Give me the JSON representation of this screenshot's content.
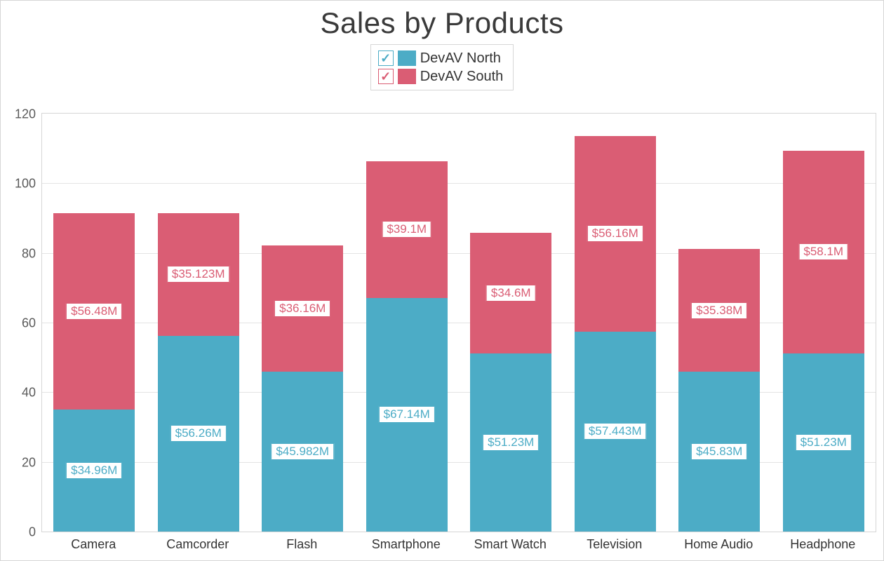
{
  "chart": {
    "type": "stacked-bar",
    "title": "Sales by Products",
    "title_fontsize": 42,
    "title_color": "#3a3a3a",
    "background_color": "#ffffff",
    "frame_border_color": "#d6d6d6",
    "grid_color": "#e4e4e4",
    "axis_label_color": "#5a5a5a",
    "axis_label_fontsize": 18,
    "y": {
      "min": 0,
      "max": 120,
      "tick_step": 20,
      "ticks": [
        0,
        20,
        40,
        60,
        80,
        100,
        120
      ]
    },
    "categories": [
      "Camera",
      "Camcorder",
      "Flash",
      "Smartphone",
      "Smart Watch",
      "Television",
      "Home Audio",
      "Headphone"
    ],
    "bar_width_ratio": 0.78,
    "series": [
      {
        "name": "DevAV North",
        "color": "#4cacc6",
        "check_border": "#4cacc6",
        "check_mark": "✓",
        "values": [
          34.96,
          56.26,
          45.982,
          67.14,
          51.23,
          57.443,
          45.83,
          51.23
        ],
        "labels": [
          "$34.96M",
          "$56.26M",
          "$45.982M",
          "$67.14M",
          "$51.23M",
          "$57.443M",
          "$45.83M",
          "$51.23M"
        ]
      },
      {
        "name": "DevAV South",
        "color": "#da5d74",
        "check_border": "#da5d74",
        "check_mark": "✓",
        "values": [
          56.48,
          35.123,
          36.16,
          39.1,
          34.6,
          56.16,
          35.38,
          58.1
        ],
        "labels": [
          "$56.48M",
          "$35.123M",
          "$36.16M",
          "$39.1M",
          "$34.6M",
          "$56.16M",
          "$35.38M",
          "$58.1M"
        ]
      }
    ],
    "data_label": {
      "bg": "#ffffff",
      "fontsize": 17
    },
    "legend": {
      "border_color": "#d6d6d6",
      "fontsize": 20,
      "text_color": "#333333"
    }
  }
}
